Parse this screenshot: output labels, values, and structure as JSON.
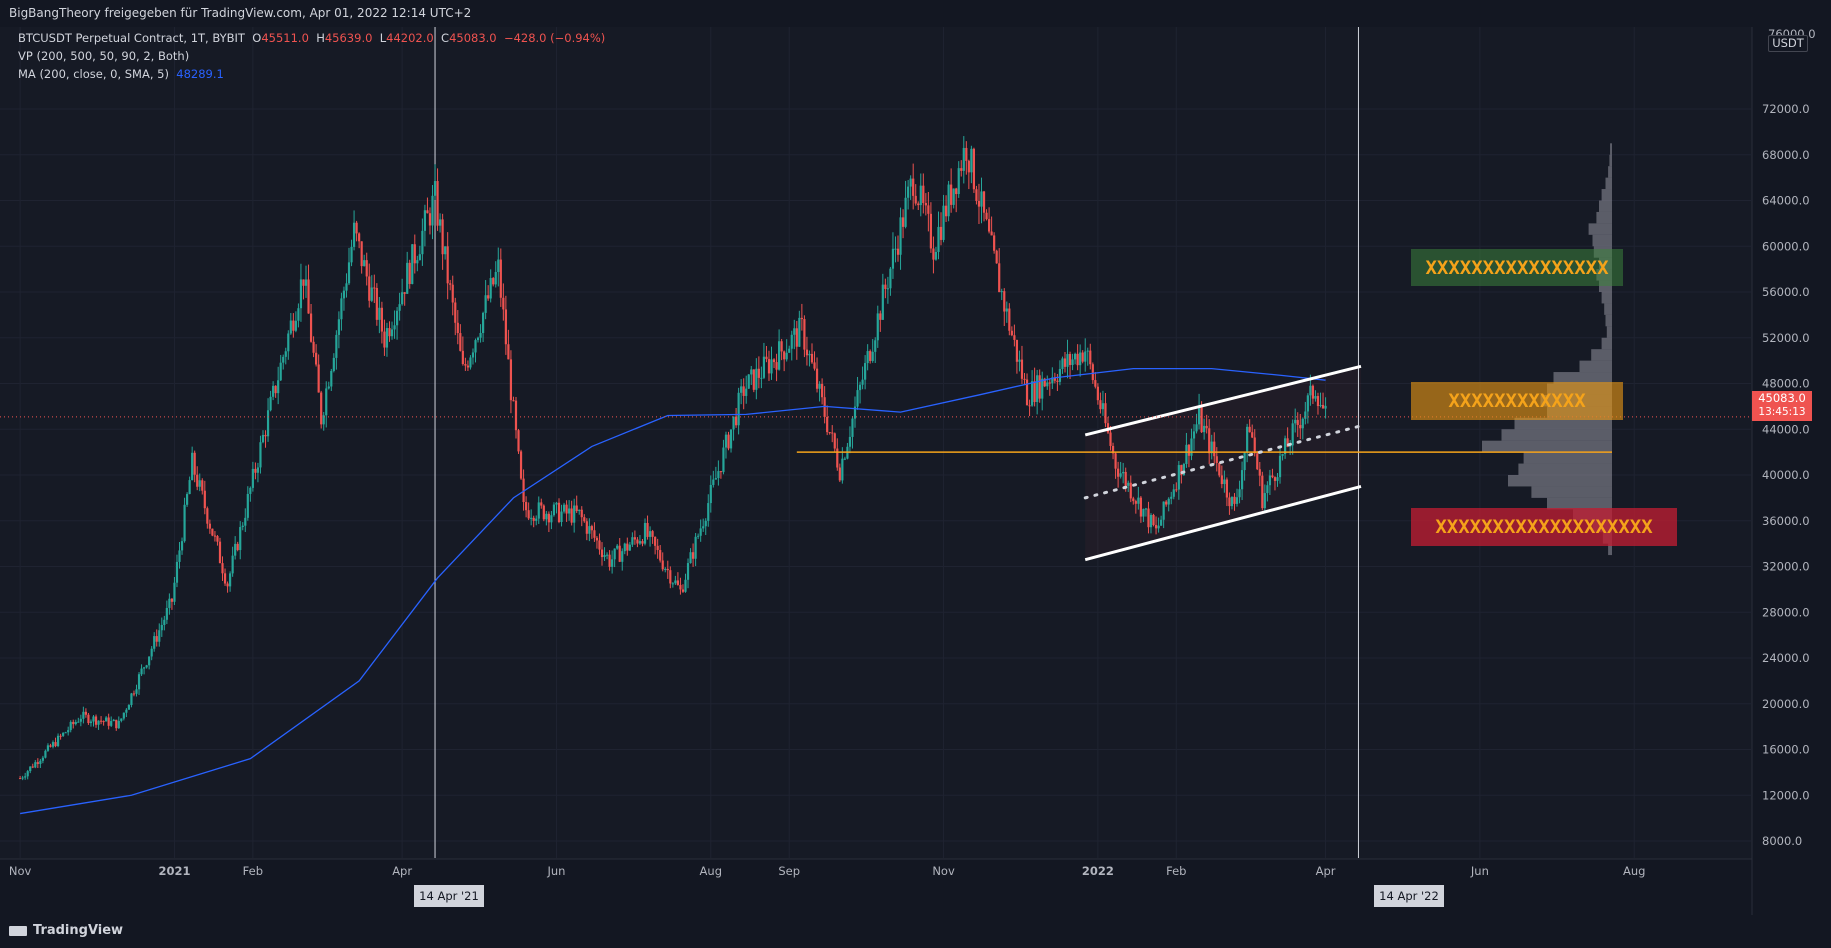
{
  "header": {
    "publisher": "BigBangTheory freigegeben für TradingView.com, Apr 01, 2022 12:14 UTC+2"
  },
  "legend": {
    "symbol": "BTCUSDT Perpetual Contract, 1T, BYBIT",
    "o_label": "O",
    "o": "45511.0",
    "h_label": "H",
    "h": "45639.0",
    "l_label": "L",
    "l": "44202.0",
    "c_label": "C",
    "c": "45083.0",
    "chg": "−428.0 (−0.94%)",
    "vp": "VP (200, 500, 50, 90, 2, Both)",
    "ma": "MA (200, close, 0, SMA, 5)",
    "ma_value": "48289.1"
  },
  "price_axis": {
    "unit": "USDT",
    "top_label": "76000.0",
    "current_price": "45083.0",
    "countdown": "13:45:13"
  },
  "crosshair": {
    "label_left": "14 Apr '21",
    "label_right": "14 Apr '22"
  },
  "zones": {
    "green": "XXXXXXXXXXXXXXXX",
    "orange": "XXXXXXXXXXXX",
    "red": "XXXXXXXXXXXXXXXXXXX"
  },
  "colors": {
    "up": "#26a69a",
    "down": "#ef5350",
    "ma": "#2962ff",
    "level": "#f5a31a",
    "bg": "#161a25"
  },
  "footer": {
    "brand": "TradingView"
  },
  "chart_data": {
    "type": "candlestick",
    "symbol": "BTCUSDT",
    "interval": "1D",
    "ylim": [
      4000,
      76000
    ],
    "y_ticks": [
      8000,
      12000,
      16000,
      20000,
      24000,
      28000,
      32000,
      36000,
      40000,
      44000,
      48000,
      52000,
      56000,
      60000,
      64000,
      68000,
      72000
    ],
    "x_ticks": [
      "Nov",
      "2021",
      "Feb",
      "Apr",
      "Jun",
      "Aug",
      "Sep",
      "Nov",
      "2022",
      "Feb",
      "Apr",
      "Jun",
      "Aug"
    ],
    "price_path": [
      [
        "2020-11-01",
        13500
      ],
      [
        "2020-11-25",
        18900
      ],
      [
        "2020-12-10",
        18200
      ],
      [
        "2020-12-31",
        29000
      ],
      [
        "2021-01-08",
        41000
      ],
      [
        "2021-01-22",
        30500
      ],
      [
        "2021-02-08",
        46000
      ],
      [
        "2021-02-21",
        57500
      ],
      [
        "2021-02-28",
        45000
      ],
      [
        "2021-03-13",
        61200
      ],
      [
        "2021-03-25",
        52000
      ],
      [
        "2021-04-14",
        64200
      ],
      [
        "2021-04-25",
        49000
      ],
      [
        "2021-05-09",
        58000
      ],
      [
        "2021-05-19",
        37000
      ],
      [
        "2021-06-10",
        36500
      ],
      [
        "2021-06-22",
        32500
      ],
      [
        "2021-07-06",
        35000
      ],
      [
        "2021-07-20",
        29800
      ],
      [
        "2021-08-14",
        47500
      ],
      [
        "2021-09-06",
        52700
      ],
      [
        "2021-09-21",
        40500
      ],
      [
        "2021-10-20",
        66000
      ],
      [
        "2021-10-28",
        60000
      ],
      [
        "2021-11-10",
        68800
      ],
      [
        "2021-11-26",
        54000
      ],
      [
        "2021-12-04",
        47000
      ],
      [
        "2021-12-27",
        51000
      ],
      [
        "2022-01-08",
        41000
      ],
      [
        "2022-01-24",
        35000
      ],
      [
        "2022-02-10",
        45000
      ],
      [
        "2022-02-24",
        37000
      ],
      [
        "2022-03-02",
        44500
      ],
      [
        "2022-03-07",
        38000
      ],
      [
        "2022-03-28",
        47700
      ],
      [
        "2022-04-01",
        45083
      ]
    ],
    "ma_path": [
      [
        "2020-11-01",
        10400
      ],
      [
        "2020-12-15",
        12000
      ],
      [
        "2021-01-31",
        15200
      ],
      [
        "2021-03-15",
        22000
      ],
      [
        "2021-04-15",
        31000
      ],
      [
        "2021-05-15",
        38000
      ],
      [
        "2021-06-15",
        42500
      ],
      [
        "2021-07-15",
        45200
      ],
      [
        "2021-08-15",
        45300
      ],
      [
        "2021-09-15",
        46000
      ],
      [
        "2021-10-15",
        45500
      ],
      [
        "2021-11-15",
        47000
      ],
      [
        "2021-12-15",
        48500
      ],
      [
        "2022-01-15",
        49300
      ],
      [
        "2022-02-15",
        49300
      ],
      [
        "2022-03-15",
        48700
      ],
      [
        "2022-04-01",
        48289
      ]
    ],
    "current_price": 45083,
    "horizontal_level": 42000,
    "channel": {
      "upper": [
        [
          "2021-12-27",
          43500
        ],
        [
          "2022-04-15",
          49500
        ]
      ],
      "lower": [
        [
          "2021-12-27",
          32600
        ],
        [
          "2022-04-15",
          39000
        ]
      ],
      "mid": [
        [
          "2021-12-27",
          38000
        ],
        [
          "2022-04-15",
          44300
        ]
      ]
    },
    "vertical_lines": [
      "2021-04-14",
      "2022-04-14"
    ],
    "volume_profile": [
      [
        33000,
        0.03
      ],
      [
        34000,
        0.07
      ],
      [
        35000,
        0.15
      ],
      [
        36000,
        0.3
      ],
      [
        37000,
        0.5
      ],
      [
        38000,
        0.62
      ],
      [
        39000,
        0.8
      ],
      [
        40000,
        0.72
      ],
      [
        41000,
        0.68
      ],
      [
        42000,
        1.0
      ],
      [
        43000,
        0.85
      ],
      [
        44000,
        0.75
      ],
      [
        45000,
        0.5
      ],
      [
        46000,
        0.55
      ],
      [
        47000,
        0.5
      ],
      [
        48000,
        0.45
      ],
      [
        49000,
        0.25
      ],
      [
        50000,
        0.16
      ],
      [
        51000,
        0.08
      ],
      [
        52000,
        0.04
      ],
      [
        53000,
        0.05
      ],
      [
        54000,
        0.06
      ],
      [
        55000,
        0.08
      ],
      [
        56000,
        0.1
      ],
      [
        57000,
        0.12
      ],
      [
        58000,
        0.1
      ],
      [
        59000,
        0.14
      ],
      [
        60000,
        0.15
      ],
      [
        61000,
        0.18
      ],
      [
        62000,
        0.12
      ],
      [
        63000,
        0.1
      ],
      [
        64000,
        0.08
      ],
      [
        65000,
        0.05
      ],
      [
        66000,
        0.03
      ],
      [
        67000,
        0.02
      ],
      [
        68000,
        0.015
      ]
    ],
    "zones": [
      {
        "color": "green",
        "y_range": [
          54200,
          57400
        ]
      },
      {
        "color": "orange",
        "y_range": [
          42900,
          46200
        ]
      },
      {
        "color": "red",
        "y_range": [
          33000,
          36300
        ]
      }
    ]
  }
}
